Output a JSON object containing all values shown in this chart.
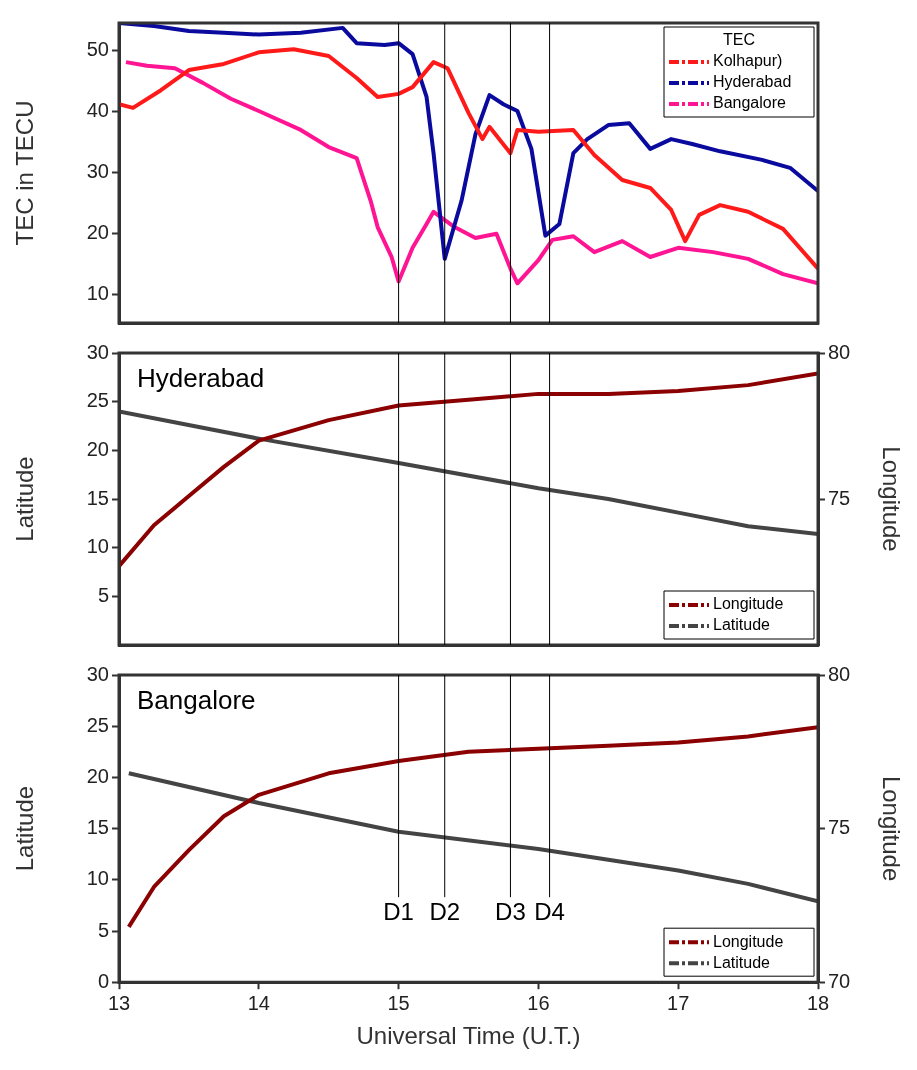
{
  "chart_data": [
    {
      "type": "line",
      "ylabel": "TEC in TECU",
      "legend_title": "TEC",
      "legend": "top right",
      "tick_labels": "y",
      "xlim": [
        13,
        18
      ],
      "ylim": [
        5.4,
        54.5
      ],
      "yticks": [
        10,
        20,
        30,
        40,
        50
      ],
      "series": [
        {
          "name": "Kolhapur)",
          "color": "#ff1a1a",
          "x": [
            13.0,
            13.1,
            13.3,
            13.5,
            13.75,
            14.0,
            14.25,
            14.5,
            14.7,
            14.85,
            15.0,
            15.1,
            15.25,
            15.35,
            15.5,
            15.6,
            15.65,
            15.8,
            15.85,
            16.0,
            16.25,
            16.4,
            16.6,
            16.8,
            16.95,
            17.05,
            17.15,
            17.3,
            17.5,
            17.75,
            18.0
          ],
          "values": [
            41.2,
            40.6,
            43.5,
            46.8,
            47.8,
            49.7,
            50.2,
            49.1,
            45.5,
            42.4,
            42.9,
            44.0,
            48.1,
            47.1,
            39.8,
            35.5,
            37.5,
            33.2,
            37.0,
            36.7,
            37.0,
            32.9,
            28.8,
            27.5,
            23.9,
            18.8,
            23.1,
            24.7,
            23.6,
            20.8,
            14.3
          ]
        },
        {
          "name": "Hyderabad",
          "color": "#0a0a9e",
          "x": [
            13.0,
            13.25,
            13.5,
            13.75,
            14.0,
            14.3,
            14.6,
            14.7,
            14.9,
            15.0,
            15.1,
            15.2,
            15.25,
            15.33,
            15.45,
            15.55,
            15.65,
            15.75,
            15.85,
            15.95,
            16.05,
            16.15,
            16.25,
            16.35,
            16.5,
            16.65,
            16.8,
            16.95,
            17.1,
            17.3,
            17.6,
            17.8,
            18.0
          ],
          "values": [
            54.5,
            54.0,
            53.2,
            52.9,
            52.6,
            52.9,
            53.7,
            51.2,
            50.9,
            51.2,
            49.4,
            42.4,
            33.2,
            15.9,
            25.4,
            36.3,
            42.7,
            41.2,
            40.1,
            33.9,
            19.7,
            21.6,
            33.2,
            35.5,
            37.8,
            38.1,
            33.9,
            35.5,
            34.7,
            33.5,
            32.1,
            30.8,
            27.0
          ]
        },
        {
          "name": "Bangalore",
          "color": "#ff1493",
          "x": [
            13.05,
            13.2,
            13.4,
            13.6,
            13.8,
            14.0,
            14.3,
            14.5,
            14.7,
            14.8,
            14.85,
            14.95,
            15.0,
            15.1,
            15.2,
            15.25,
            15.4,
            15.55,
            15.7,
            15.8,
            15.85,
            16.0,
            16.1,
            16.25,
            16.4,
            16.6,
            16.8,
            17.0,
            17.25,
            17.5,
            17.75,
            18.0
          ],
          "values": [
            48.1,
            47.5,
            47.1,
            44.7,
            42.1,
            40.1,
            37.0,
            34.2,
            32.4,
            25.4,
            21.1,
            16.2,
            12.2,
            17.7,
            21.6,
            23.6,
            21.1,
            19.3,
            20.0,
            14.3,
            11.9,
            15.7,
            19.0,
            19.6,
            17.0,
            18.8,
            16.2,
            17.7,
            17.0,
            15.9,
            13.4,
            11.9
          ]
        }
      ],
      "ref_lines": [
        {
          "axis": "x",
          "value": 15.0
        },
        {
          "axis": "x",
          "value": 15.33
        },
        {
          "axis": "x",
          "value": 15.8
        },
        {
          "axis": "x",
          "value": 16.08
        }
      ]
    },
    {
      "type": "line",
      "title": "Hyderabad",
      "ylabel": "Latitude",
      "y2label": "Longitude",
      "legend": "bottom right",
      "tick_labels": "y",
      "xlim": [
        13,
        18
      ],
      "ylim": [
        0,
        30
      ],
      "yticks": [
        5,
        10,
        15,
        20,
        25,
        30
      ],
      "y2lim": [
        70,
        80
      ],
      "y2ticks": [
        75,
        80
      ],
      "series": [
        {
          "name": "Longitude",
          "color": "#8b0000",
          "axis": "y2",
          "x": [
            13.0,
            13.25,
            13.5,
            13.75,
            14.0,
            14.5,
            15.0,
            15.5,
            16.0,
            16.5,
            17.0,
            17.5,
            18.0
          ],
          "values": [
            72.7,
            74.1,
            75.1,
            76.1,
            77.0,
            77.7,
            78.2,
            78.4,
            78.6,
            78.6,
            78.7,
            78.9,
            79.3
          ]
        },
        {
          "name": "Latitude",
          "color": "#444444",
          "x": [
            13.0,
            14.0,
            15.0,
            16.0,
            16.5,
            17.0,
            17.5,
            18.0
          ],
          "values": [
            24.0,
            21.2,
            18.7,
            16.1,
            15.0,
            13.6,
            12.2,
            11.4
          ]
        }
      ],
      "ref_lines": [
        {
          "axis": "x",
          "value": 15.0
        },
        {
          "axis": "x",
          "value": 15.33
        },
        {
          "axis": "x",
          "value": 15.8
        },
        {
          "axis": "x",
          "value": 16.08
        }
      ]
    },
    {
      "type": "line",
      "title": "Bangalore",
      "xlabel": "Universal Time (U.T.)",
      "ylabel": "Latitude",
      "y2label": "Longitude",
      "legend": "bottom right",
      "xlim": [
        13,
        18
      ],
      "xticks": [
        13,
        14,
        15,
        16,
        17,
        18
      ],
      "ylim": [
        0,
        30
      ],
      "yticks": [
        0,
        5,
        10,
        15,
        20,
        25,
        30
      ],
      "y2lim": [
        70,
        80
      ],
      "y2ticks": [
        70,
        75,
        80
      ],
      "series": [
        {
          "name": "Longitude",
          "color": "#8b0000",
          "axis": "y2",
          "x": [
            13.07,
            13.25,
            13.5,
            13.75,
            14.0,
            14.5,
            15.0,
            15.5,
            16.0,
            16.5,
            17.0,
            17.5,
            18.0
          ],
          "values": [
            71.8,
            73.1,
            74.3,
            75.4,
            76.1,
            76.8,
            77.2,
            77.5,
            77.6,
            77.7,
            77.8,
            78.0,
            78.3
          ]
        },
        {
          "name": "Latitude",
          "color": "#444444",
          "x": [
            13.07,
            14.0,
            15.0,
            16.0,
            17.0,
            17.5,
            18.0
          ],
          "values": [
            20.4,
            17.5,
            14.7,
            13.0,
            10.9,
            9.6,
            7.9
          ]
        }
      ],
      "ref_lines": [
        {
          "axis": "x",
          "value": 15.0,
          "label": "D1"
        },
        {
          "axis": "x",
          "value": 15.33,
          "label": "D2"
        },
        {
          "axis": "x",
          "value": 15.8,
          "label": "D3"
        },
        {
          "axis": "x",
          "value": 16.08,
          "label": "D4"
        }
      ]
    }
  ]
}
